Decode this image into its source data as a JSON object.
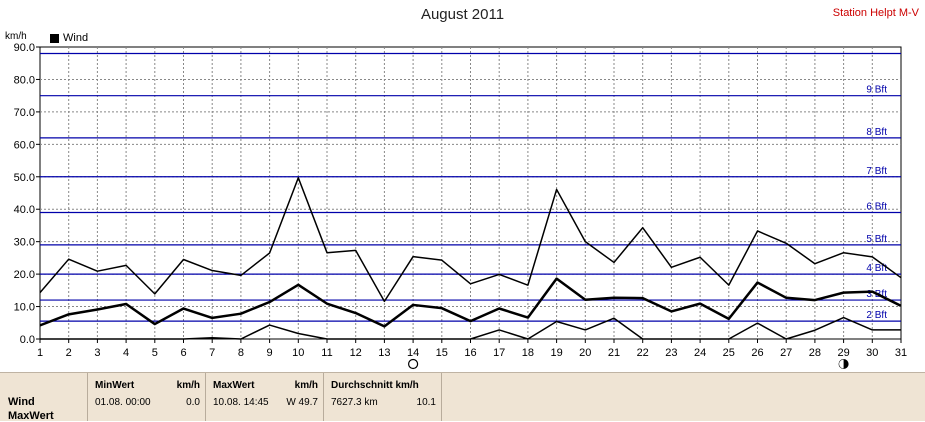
{
  "title": "August 2011",
  "station": "Station Helpt M-V",
  "unit": "km/h",
  "legend": {
    "label": "Wind",
    "color": "#000000"
  },
  "colors": {
    "bft_line": "#0000aa",
    "bft_label": "#0000aa",
    "grid": "#888888",
    "series": "#000000",
    "panel_bg": "#efe4d4"
  },
  "chart_data": {
    "type": "line",
    "title": "August 2011",
    "ylabel": "km/h",
    "ylim": [
      0,
      90
    ],
    "yticks": [
      "0.0",
      "10.0",
      "20.0",
      "30.0",
      "40.0",
      "50.0",
      "60.0",
      "70.0",
      "80.0",
      "90.0"
    ],
    "x": [
      1,
      2,
      3,
      4,
      5,
      6,
      7,
      8,
      9,
      10,
      11,
      12,
      13,
      14,
      15,
      16,
      17,
      18,
      19,
      20,
      21,
      22,
      23,
      24,
      25,
      26,
      27,
      28,
      29,
      30,
      31
    ],
    "grid": true,
    "series": [
      {
        "values": [
          14.3,
          24.6,
          20.9,
          22.7,
          13.9,
          24.5,
          21.1,
          19.6,
          26.5,
          49.7,
          26.6,
          27.3,
          11.6,
          25.4,
          24.3,
          17.0,
          19.9,
          16.6,
          46.1,
          30.0,
          23.6,
          34.3,
          22.1,
          25.2,
          16.6,
          33.3,
          29.5,
          23.2,
          26.6,
          25.3,
          18.9
        ],
        "width": 1.5
      },
      {
        "values": [
          4.2,
          7.6,
          9.1,
          10.8,
          4.6,
          9.4,
          6.5,
          7.8,
          11.4,
          16.7,
          10.9,
          8.0,
          3.9,
          10.5,
          9.5,
          5.5,
          9.4,
          6.6,
          18.6,
          12.1,
          12.7,
          12.6,
          8.5,
          10.9,
          6.2,
          17.4,
          12.7,
          12.0,
          14.3,
          14.6,
          10.2
        ],
        "width": 2.5
      },
      {
        "values": [
          0,
          0,
          0,
          0,
          0,
          0,
          0.4,
          0,
          4.3,
          1.7,
          0,
          0,
          0,
          0,
          0,
          0,
          2.8,
          0,
          5.4,
          2.8,
          6.4,
          0,
          0,
          0,
          0,
          4.9,
          0,
          2.7,
          6.6,
          2.8,
          2.8
        ],
        "width": 1.5
      }
    ],
    "bft_levels": [
      {
        "label": "2 Bft",
        "value": 5.5
      },
      {
        "label": "3 Bft",
        "value": 12
      },
      {
        "label": "4 Bft",
        "value": 20
      },
      {
        "label": "5 Bft",
        "value": 29
      },
      {
        "label": "6 Bft",
        "value": 39
      },
      {
        "label": "7 Bft",
        "value": 50
      },
      {
        "label": "8 Bft",
        "value": 62
      },
      {
        "label": "9 Bft",
        "value": 75
      },
      {
        "value": 88
      }
    ],
    "moon_markers": [
      {
        "day": 14,
        "phase": "full-moon"
      },
      {
        "day": 29,
        "phase": "new-moon"
      }
    ]
  },
  "stats": {
    "row_labels": [
      "Wind",
      "MaxWert"
    ],
    "min_header": "MinWert",
    "min_unit": "km/h",
    "min_time": "01.08.  00:00",
    "min_value": "0.0",
    "max_header": "MaxWert",
    "max_unit": "km/h",
    "max_time": "10.08.  14:45",
    "max_value": "W 49.7",
    "avg_header": "Durchschnitt km/h",
    "avg_distance": "7627.3 km",
    "avg_value": "10.1"
  }
}
